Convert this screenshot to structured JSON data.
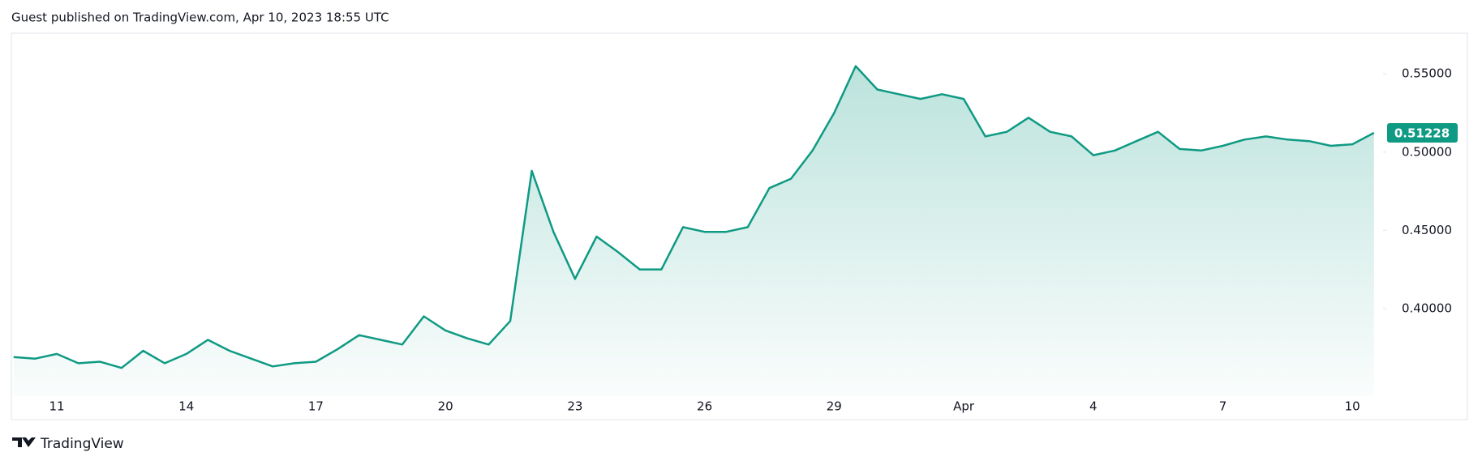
{
  "chart_data": {
    "type": "area",
    "title": "Guest published on TradingView.com, Apr 10, 2023 18:55 UTC",
    "source": "TradingView",
    "color": "#0f9a83",
    "categories": [
      null,
      null,
      "11",
      null,
      null,
      null,
      null,
      null,
      "14",
      null,
      null,
      null,
      null,
      null,
      "17",
      null,
      null,
      null,
      null,
      null,
      "20",
      null,
      null,
      null,
      null,
      null,
      "23",
      null,
      null,
      null,
      null,
      null,
      "26",
      null,
      null,
      null,
      null,
      null,
      "29",
      null,
      null,
      null,
      null,
      null,
      "Apr",
      null,
      null,
      null,
      null,
      null,
      "4",
      null,
      null,
      null,
      null,
      null,
      "7",
      null,
      null,
      null,
      null,
      null,
      "10",
      null
    ],
    "values": [
      0.369,
      0.368,
      0.371,
      0.365,
      0.366,
      0.362,
      0.373,
      0.365,
      0.371,
      0.38,
      0.373,
      0.368,
      0.363,
      0.365,
      0.366,
      0.374,
      0.383,
      0.38,
      0.377,
      0.395,
      0.386,
      0.381,
      0.377,
      0.392,
      0.488,
      0.449,
      0.419,
      0.446,
      0.436,
      0.425,
      0.425,
      0.452,
      0.449,
      0.449,
      0.452,
      0.477,
      0.483,
      0.501,
      0.525,
      0.555,
      0.54,
      0.537,
      0.534,
      0.537,
      0.534,
      0.51,
      0.513,
      0.522,
      0.513,
      0.51,
      0.498,
      0.501,
      0.507,
      0.513,
      0.502,
      0.501,
      0.504,
      0.508,
      0.51,
      0.508,
      0.507,
      0.504,
      0.505,
      0.51228
    ],
    "ylim": [
      0.344,
      0.576
    ],
    "yticks": [
      {
        "value": 0.4,
        "label": "0.40000"
      },
      {
        "value": 0.45,
        "label": "0.45000"
      },
      {
        "value": 0.5,
        "label": "0.50000"
      },
      {
        "value": 0.55,
        "label": "0.55000"
      }
    ],
    "grid": false
  }
}
